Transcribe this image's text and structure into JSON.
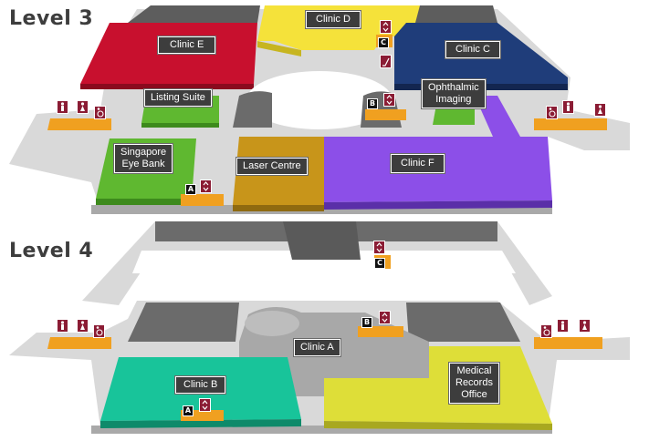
{
  "levels": [
    {
      "title": "Level 3"
    },
    {
      "title": "Level 4"
    }
  ],
  "areas": {
    "clinic_e": "Clinic E",
    "clinic_d": "Clinic D",
    "clinic_c": "Clinic C",
    "listing_suite": "Listing Suite",
    "ophthalmic_imaging": "Ophthalmic\nImaging",
    "singapore_eye_bank": "Singapore\nEye Bank",
    "laser_centre": "Laser Centre",
    "clinic_f": "Clinic F",
    "clinic_a": "Clinic A",
    "clinic_b": "Clinic B",
    "medical_records_office": "Medical\nRecords\nOffice"
  },
  "lift_badges": {
    "a": "A",
    "b": "B",
    "c": "C"
  },
  "colors": {
    "clinic_e": "#c8102e",
    "clinic_d": "#f5e23a",
    "clinic_c": "#1f3d7a",
    "green": "#5fb830",
    "laser_centre": "#c8951a",
    "clinic_f": "#8c4fe8",
    "clinic_b": "#18c49a",
    "medical_records": "#dede38",
    "floor": "#d9d9d9",
    "core": "#6b6b6b",
    "facility": "#f0a020",
    "icon": "#8b1c34"
  },
  "icons": [
    "lift-icon",
    "toilet-male-icon",
    "toilet-female-icon",
    "accessible-toilet-icon",
    "escalator-icon"
  ]
}
